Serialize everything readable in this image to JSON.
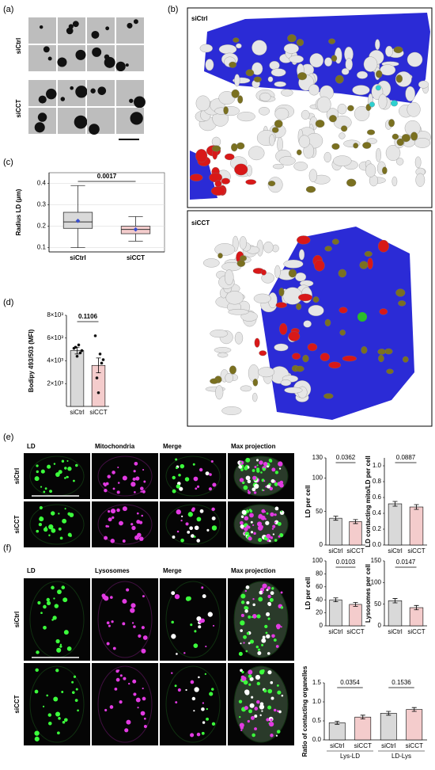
{
  "figure": {
    "a": {
      "label": "(a)",
      "rows": [
        "siCtrl",
        "siCCT"
      ]
    },
    "b": {
      "label": "(b)",
      "views": [
        "siCtrl",
        "siCCT"
      ]
    },
    "e": {
      "label": "(e)",
      "columns": [
        "LD",
        "Mitochondria",
        "Merge",
        "Max projection"
      ],
      "rows": [
        "siCtrl",
        "siCCT"
      ]
    },
    "f": {
      "label": "(f)",
      "columns": [
        "LD",
        "Lysosomes",
        "Merge",
        "Max projection"
      ],
      "rows": [
        "siCtrl",
        "siCCT"
      ]
    }
  },
  "chart_data": [
    {
      "type": "box",
      "panel": "(c)",
      "y_label": "Radius LD (µm)",
      "categories": [
        "siCtrl",
        "siCCT"
      ],
      "colors": [
        "#d9d9d9",
        "#f4cccc"
      ],
      "grid": true,
      "ylim": [
        0.08,
        0.45
      ],
      "yticks": [
        0.1,
        0.2,
        0.3,
        0.4
      ],
      "boxes": [
        {
          "min": 0.1,
          "q1": 0.19,
          "median": 0.22,
          "q3": 0.265,
          "max": 0.39,
          "mean": 0.225
        },
        {
          "min": 0.13,
          "q1": 0.165,
          "median": 0.185,
          "q3": 0.2,
          "max": 0.245,
          "mean": 0.185
        }
      ],
      "pvalues": [
        "0.0017"
      ]
    },
    {
      "type": "bar",
      "panel": "(d)",
      "y_label": "Bodipy 493/503 (MFI)",
      "categories": [
        "siCtrl",
        "siCCT"
      ],
      "colors": [
        "#d9d9d9",
        "#f4cccc"
      ],
      "ylim": [
        0,
        8000
      ],
      "yticks": [
        {
          "value": 2000,
          "label": "2×10³"
        },
        {
          "value": 4000,
          "label": "4×10³"
        },
        {
          "value": 6000,
          "label": "6×10³"
        },
        {
          "value": 8000,
          "label": "8×10³"
        }
      ],
      "values": [
        4900,
        3600
      ],
      "errors": [
        300,
        650
      ],
      "points": [
        [
          5100,
          5400,
          4700,
          5200,
          4400,
          4900
        ],
        [
          6200,
          4600,
          3800,
          2500,
          1200,
          4100
        ]
      ],
      "pvalues": [
        "0.1106"
      ]
    },
    {
      "type": "bar",
      "y_label": "LD per cell",
      "categories": [
        "siCtrl",
        "siCCT"
      ],
      "colors": [
        "#d9d9d9",
        "#f4cccc"
      ],
      "ylim": [
        0,
        130
      ],
      "yticks": [
        0,
        50,
        100,
        130
      ],
      "values": [
        40,
        35
      ],
      "errors": [
        3,
        3
      ],
      "pvalues": [
        "0.0362"
      ]
    },
    {
      "type": "bar",
      "y_label": "LD contacting mito/LD per cell",
      "categories": [
        "siCtrl",
        "siCCT"
      ],
      "colors": [
        "#d9d9d9",
        "#f4cccc"
      ],
      "ylim": [
        0,
        1.1
      ],
      "yticks": [
        {
          "value": 0,
          "label": "0.0"
        },
        0.2,
        0.4,
        0.6,
        0.8,
        {
          "value": 1,
          "label": "1.0"
        }
      ],
      "values": [
        0.52,
        0.48
      ],
      "errors": [
        0.03,
        0.03
      ],
      "pvalues": [
        "0.0887"
      ]
    },
    {
      "type": "bar",
      "y_label": "LD per cell",
      "categories": [
        "siCtrl",
        "siCCT"
      ],
      "colors": [
        "#d9d9d9",
        "#f4cccc"
      ],
      "ylim": [
        0,
        100
      ],
      "yticks": [
        0,
        20,
        40,
        60,
        80,
        100
      ],
      "values": [
        40,
        33
      ],
      "errors": [
        3,
        3
      ],
      "pvalues": [
        "0.0103"
      ]
    },
    {
      "type": "bar",
      "y_label": "Lysosomes per cell",
      "categories": [
        "siCtrl",
        "siCCT"
      ],
      "colors": [
        "#d9d9d9",
        "#f4cccc"
      ],
      "ylim": [
        0,
        150
      ],
      "yticks": [
        0,
        50,
        100,
        150
      ],
      "values": [
        58,
        42
      ],
      "errors": [
        5,
        5
      ],
      "pvalues": [
        "0.0147"
      ]
    },
    {
      "type": "bar",
      "y_label": "Ratio of contacting organelles",
      "categories": [
        "siCtrl",
        "siCCT",
        "siCtrl",
        "siCCT"
      ],
      "groups": [
        "Lys-LD",
        "LD-Lys"
      ],
      "colors": [
        "#d9d9d9",
        "#f4cccc",
        "#d9d9d9",
        "#f4cccc"
      ],
      "ylim": [
        0,
        1.5
      ],
      "yticks": [
        {
          "value": 0,
          "label": "0.0"
        },
        0.5,
        {
          "value": 1,
          "label": "1.0"
        },
        1.5
      ],
      "values": [
        0.45,
        0.6,
        0.7,
        0.8
      ],
      "errors": [
        0.04,
        0.05,
        0.05,
        0.05
      ],
      "pvalues": [
        "0.0354",
        "0.1536"
      ]
    }
  ]
}
